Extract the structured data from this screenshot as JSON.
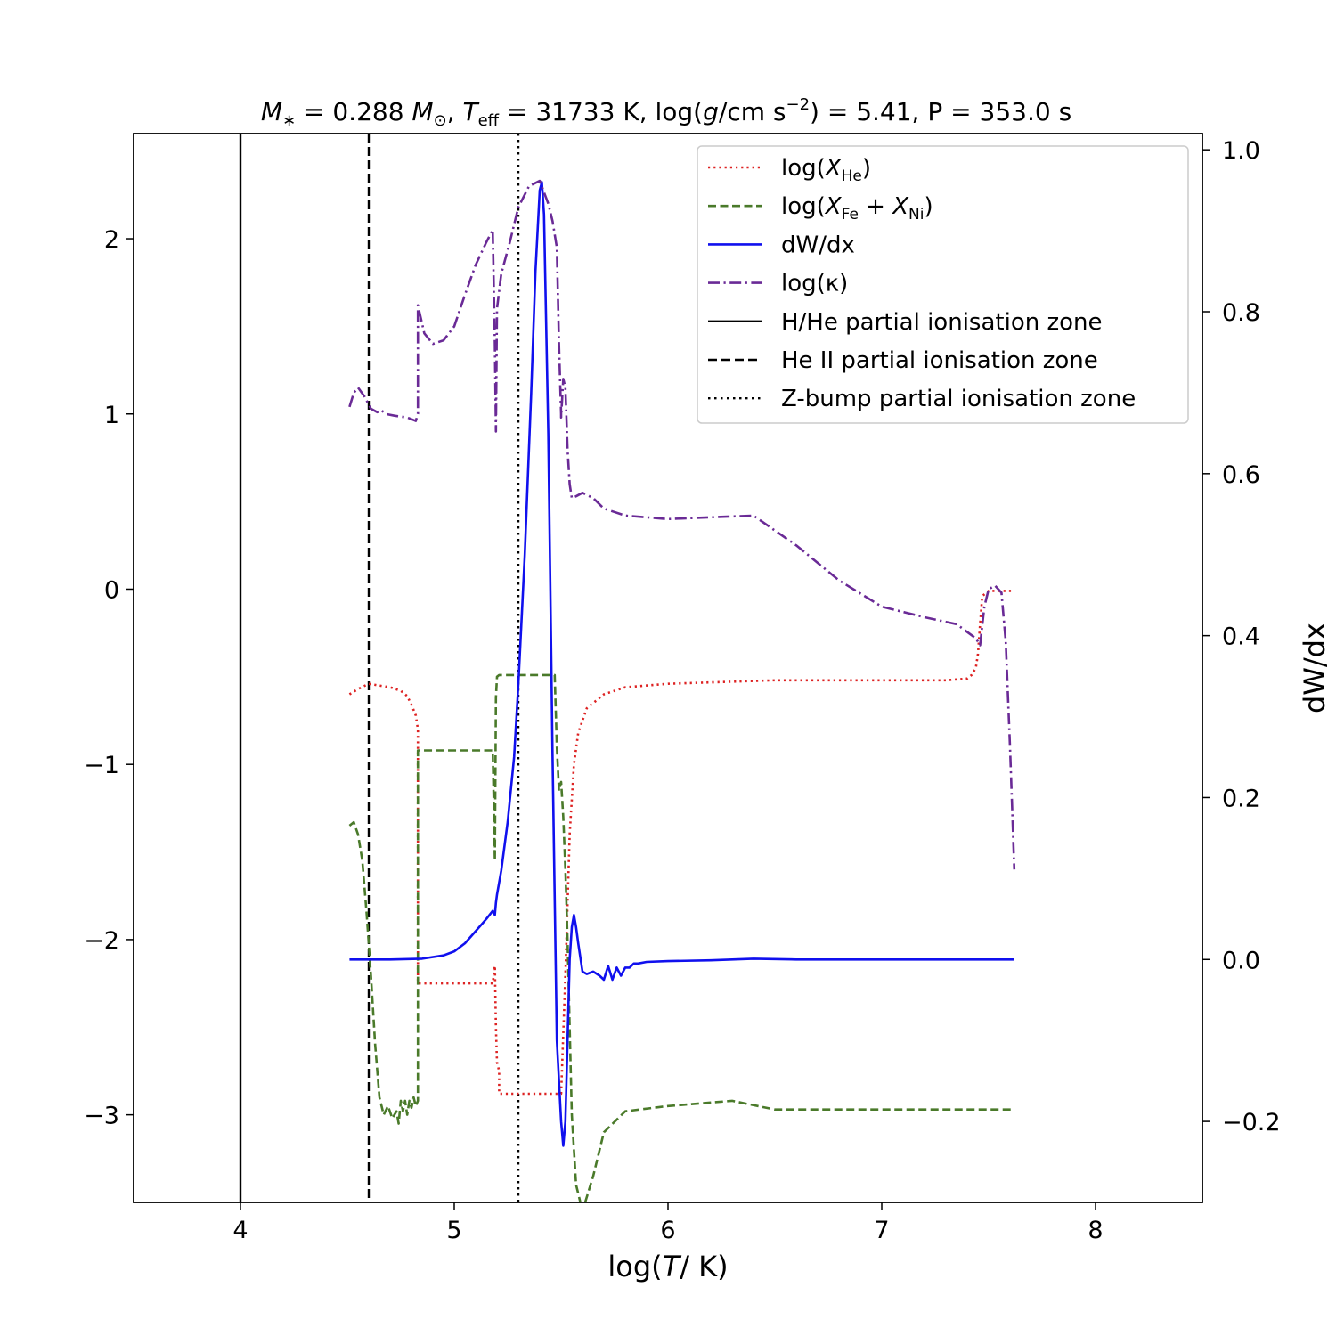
{
  "chart_data": {
    "type": "line",
    "title": "M* = 0.288 M⊙,   Teff = 31733 K,   log(g/cm s⁻²) = 5.41,   P = 353.0 s",
    "title_parts": {
      "mass": "M∗ = 0.288 M⊙,",
      "teff": "Teff = 31733 K,",
      "logg": "log(g/cm s⁻²) = 5.41,",
      "period": "P = 353.0 s"
    },
    "xlabel": "log(T/K)",
    "ylabel_left": "",
    "ylabel_right": "dW/dx",
    "xlim": [
      3.5,
      8.5
    ],
    "ylim_left": [
      -3.5,
      2.6
    ],
    "ylim_right": [
      -0.3,
      1.02
    ],
    "x_ticks": [
      4,
      5,
      6,
      7,
      8
    ],
    "y_ticks_left": [
      -3,
      -2,
      -1,
      0,
      1,
      2
    ],
    "y_ticks_right": [
      -0.2,
      0.0,
      0.2,
      0.4,
      0.6,
      0.8,
      1.0
    ],
    "y_tick_labels_left": [
      "−3",
      "−2",
      "−1",
      "0",
      "1",
      "2"
    ],
    "y_tick_labels_right": [
      "−0.2",
      "0.0",
      "0.2",
      "0.4",
      "0.6",
      "0.8",
      "1.0"
    ],
    "legend_position": "top-right",
    "colors": {
      "he": "#dd2222",
      "fe": "#4a7a2a",
      "dwdx": "#1010ee",
      "kappa": "#6a2a96",
      "zones": "#000000",
      "right_axis_label": "#1010ee"
    },
    "vertical_lines": [
      {
        "name": "H/He partial ionisation zone",
        "x": 4.0,
        "style": "solid"
      },
      {
        "name": "He II partial ionisation zone",
        "x": 4.6,
        "style": "dashed"
      },
      {
        "name": "Z-bump partial ionisation zone",
        "x": 5.3,
        "style": "dotted"
      }
    ],
    "series": [
      {
        "name": "log(X_He)",
        "legend_main": "log(X",
        "legend_sub": "He",
        "legend_tail": ")",
        "axis": "left",
        "style": "dotted",
        "x": [
          4.51,
          4.55,
          4.6,
          4.65,
          4.7,
          4.75,
          4.78,
          4.8,
          4.82,
          4.83,
          4.83,
          4.9,
          5.0,
          5.1,
          5.18,
          5.19,
          5.195,
          5.2,
          5.21,
          5.21,
          5.3,
          5.4,
          5.48,
          5.5,
          5.52,
          5.54,
          5.56,
          5.58,
          5.62,
          5.7,
          5.8,
          6.0,
          6.5,
          7.0,
          7.3,
          7.4,
          7.42,
          7.44,
          7.45,
          7.46,
          7.47,
          7.5,
          7.6,
          7.62
        ],
        "y": [
          -0.6,
          -0.57,
          -0.54,
          -0.55,
          -0.56,
          -0.58,
          -0.61,
          -0.66,
          -0.72,
          -0.8,
          -2.25,
          -2.25,
          -2.25,
          -2.25,
          -2.25,
          -2.15,
          -2.5,
          -2.7,
          -2.75,
          -2.88,
          -2.88,
          -2.88,
          -2.88,
          -2.88,
          -2.2,
          -1.4,
          -1.0,
          -0.82,
          -0.68,
          -0.6,
          -0.56,
          -0.54,
          -0.52,
          -0.52,
          -0.52,
          -0.51,
          -0.49,
          -0.45,
          -0.37,
          -0.2,
          -0.04,
          -0.01,
          -0.01,
          -0.01
        ]
      },
      {
        "name": "log(X_Fe + X_Ni)",
        "legend_main": "log(X",
        "legend_sub": "Fe",
        "legend_mid": " + X",
        "legend_sub2": "Ni",
        "legend_tail": ")",
        "axis": "left",
        "style": "dashed",
        "x": [
          4.51,
          4.53,
          4.55,
          4.57,
          4.59,
          4.61,
          4.63,
          4.65,
          4.67,
          4.69,
          4.71,
          4.73,
          4.74,
          4.75,
          4.76,
          4.77,
          4.78,
          4.79,
          4.8,
          4.81,
          4.82,
          4.83,
          4.83,
          4.9,
          5.0,
          5.1,
          5.18,
          5.19,
          5.195,
          5.2,
          5.21,
          5.3,
          5.4,
          5.47,
          5.48,
          5.49,
          5.5,
          5.51,
          5.52,
          5.53,
          5.54,
          5.55,
          5.57,
          5.6,
          5.65,
          5.7,
          5.8,
          6.0,
          6.3,
          6.5,
          7.0,
          7.62
        ],
        "y": [
          -1.35,
          -1.33,
          -1.4,
          -1.55,
          -1.85,
          -2.2,
          -2.6,
          -2.9,
          -3.0,
          -2.95,
          -3.02,
          -2.98,
          -3.05,
          -2.92,
          -2.98,
          -2.92,
          -3.0,
          -2.92,
          -2.96,
          -2.9,
          -2.95,
          -2.92,
          -0.92,
          -0.92,
          -0.92,
          -0.92,
          -0.92,
          -1.55,
          -0.62,
          -0.5,
          -0.49,
          -0.49,
          -0.49,
          -0.49,
          -0.9,
          -1.15,
          -1.1,
          -1.3,
          -1.6,
          -2.0,
          -2.5,
          -3.0,
          -3.4,
          -3.55,
          -3.35,
          -3.1,
          -2.98,
          -2.95,
          -2.92,
          -2.97,
          -2.97,
          -2.97
        ]
      },
      {
        "name": "dW/dx",
        "legend_main": "dW/dx",
        "axis": "right",
        "style": "solid",
        "x": [
          4.51,
          4.7,
          4.85,
          4.95,
          5.0,
          5.05,
          5.1,
          5.15,
          5.18,
          5.19,
          5.195,
          5.2,
          5.22,
          5.25,
          5.28,
          5.3,
          5.33,
          5.36,
          5.38,
          5.4,
          5.41,
          5.42,
          5.44,
          5.46,
          5.48,
          5.5,
          5.51,
          5.52,
          5.53,
          5.54,
          5.55,
          5.56,
          5.57,
          5.58,
          5.6,
          5.62,
          5.65,
          5.68,
          5.7,
          5.72,
          5.74,
          5.76,
          5.78,
          5.8,
          5.82,
          5.84,
          5.86,
          5.9,
          6.0,
          6.2,
          6.4,
          6.6,
          7.0,
          7.62
        ],
        "y": [
          0.0,
          0.0,
          0.001,
          0.005,
          0.01,
          0.02,
          0.035,
          0.05,
          0.06,
          0.055,
          0.07,
          0.08,
          0.11,
          0.17,
          0.25,
          0.34,
          0.5,
          0.7,
          0.85,
          0.95,
          0.96,
          0.92,
          0.65,
          0.25,
          -0.1,
          -0.2,
          -0.23,
          -0.2,
          -0.1,
          0.0,
          0.04,
          0.055,
          0.04,
          0.02,
          -0.015,
          -0.018,
          -0.015,
          -0.02,
          -0.025,
          -0.008,
          -0.025,
          -0.01,
          -0.02,
          -0.01,
          -0.01,
          -0.005,
          -0.005,
          -0.003,
          -0.002,
          -0.001,
          0.001,
          0.0,
          0.0,
          0.0
        ]
      },
      {
        "name": "log(κ)",
        "legend_main": "log(κ)",
        "axis": "left",
        "style": "dashdot",
        "x": [
          4.51,
          4.53,
          4.55,
          4.58,
          4.61,
          4.64,
          4.66,
          4.68,
          4.72,
          4.78,
          4.82,
          4.83,
          4.83,
          4.86,
          4.9,
          4.95,
          5.0,
          5.05,
          5.1,
          5.15,
          5.18,
          5.19,
          5.195,
          5.2,
          5.22,
          5.26,
          5.3,
          5.35,
          5.4,
          5.44,
          5.46,
          5.48,
          5.49,
          5.5,
          5.5,
          5.51,
          5.52,
          5.53,
          5.54,
          5.55,
          5.57,
          5.6,
          5.65,
          5.7,
          5.8,
          6.0,
          6.2,
          6.4,
          6.6,
          6.8,
          7.0,
          7.2,
          7.35,
          7.44,
          7.46,
          7.48,
          7.5,
          7.53,
          7.56,
          7.58,
          7.6,
          7.62
        ],
        "y": [
          1.04,
          1.12,
          1.15,
          1.1,
          1.03,
          1.01,
          1.02,
          1.0,
          0.99,
          0.98,
          0.96,
          1.0,
          1.62,
          1.46,
          1.4,
          1.42,
          1.5,
          1.68,
          1.85,
          1.98,
          2.05,
          1.4,
          0.9,
          1.6,
          1.8,
          1.98,
          2.18,
          2.3,
          2.33,
          2.2,
          2.1,
          1.95,
          1.4,
          1.0,
          0.98,
          1.2,
          1.15,
          0.8,
          0.6,
          0.52,
          0.53,
          0.55,
          0.52,
          0.46,
          0.42,
          0.4,
          0.41,
          0.42,
          0.25,
          0.05,
          -0.1,
          -0.16,
          -0.2,
          -0.28,
          -0.32,
          -0.1,
          0.0,
          0.02,
          -0.02,
          -0.3,
          -0.9,
          -1.6
        ]
      }
    ]
  }
}
